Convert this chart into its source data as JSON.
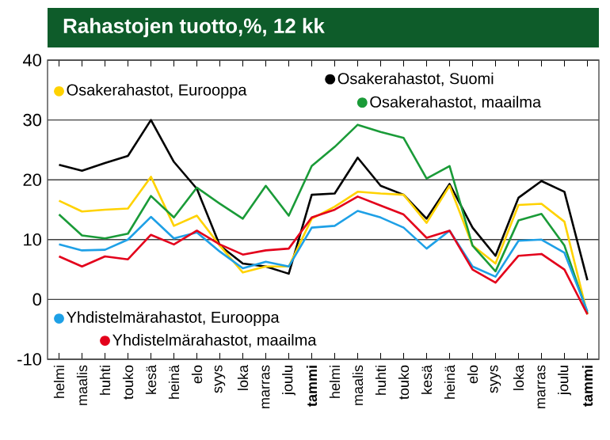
{
  "chart_data": {
    "type": "line",
    "title": "Rahastojen tuotto,%, 12 kk",
    "categories": [
      "helmi",
      "maalis",
      "huhti",
      "touko",
      "kesä",
      "heinä",
      "elo",
      "syys",
      "loka",
      "marras",
      "joulu",
      "**tammi**",
      "helmi",
      "maalis",
      "huhti",
      "touko",
      "kesä",
      "heinä",
      "elo",
      "syys",
      "loka",
      "marras",
      "joulu",
      "**tammi**"
    ],
    "series": [
      {
        "name": "Osakerahastot, Suomi",
        "color": "#000000",
        "values": [
          22.5,
          21.5,
          22.8,
          24,
          30,
          23,
          18.5,
          9,
          6,
          5.5,
          4.3,
          17.5,
          17.7,
          23.7,
          19,
          17.5,
          13.5,
          19.3,
          12,
          7.3,
          17,
          19.8,
          18,
          3.2
        ]
      },
      {
        "name": "Osakerahastot, Eurooppa",
        "color": "#ffd200",
        "values": [
          16.5,
          14.7,
          15,
          15.2,
          20.5,
          12.3,
          14,
          9,
          4.5,
          5.5,
          5.5,
          13.5,
          15.5,
          18,
          17.7,
          17.5,
          12.8,
          19,
          9,
          6,
          15.8,
          16,
          13,
          -2.5
        ]
      },
      {
        "name": "Osakerahastot, maailma",
        "color": "#1a9b38",
        "values": [
          14.2,
          10.7,
          10.2,
          11,
          17.3,
          13.7,
          18.7,
          16,
          13.5,
          19,
          14,
          22.3,
          25.5,
          29.2,
          28,
          27,
          20.2,
          22.3,
          9,
          4.7,
          13.2,
          14.3,
          9,
          -2.3
        ]
      },
      {
        "name": "Yhdistelmärahastot, Eurooppa",
        "color": "#1ea0e6",
        "values": [
          9.2,
          8.2,
          8.3,
          10,
          13.8,
          10.2,
          11.2,
          8,
          5.2,
          6.3,
          5.5,
          12,
          12.3,
          14.8,
          13.7,
          12,
          8.5,
          11.5,
          5.5,
          3.8,
          9.8,
          10,
          7.8,
          -2
        ]
      },
      {
        "name": "Yhdistelmärahastot, maailma",
        "color": "#e3001b",
        "values": [
          7.2,
          5.5,
          7.2,
          6.7,
          10.8,
          9.2,
          11.5,
          9.2,
          7.5,
          8.2,
          8.5,
          13.7,
          15,
          17.2,
          15.7,
          14.2,
          10.3,
          11.5,
          5,
          2.8,
          7.3,
          7.6,
          5,
          -2.5
        ]
      }
    ],
    "ylim": [
      -10,
      40
    ],
    "yticks": [
      -10,
      0,
      10,
      20,
      30,
      40
    ],
    "grid": "y",
    "legend": "left",
    "marker": "none",
    "line_style": "solid"
  }
}
